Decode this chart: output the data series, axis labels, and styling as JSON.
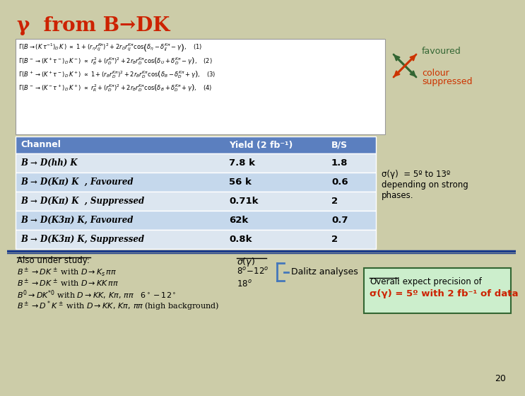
{
  "bg_color": "#cccca8",
  "title": "γ  from B→DK",
  "title_color": "#cc2200",
  "title_fontsize": 20,
  "favoured_color": "#336633",
  "suppressed_color": "#cc3300",
  "table_header_color": "#5b7fbf",
  "table_header_text_color": "#ffffff",
  "table_cols": [
    "Channel",
    "Yield (2 fb⁻¹)",
    "B/S"
  ],
  "table_rows": [
    [
      "B → D(hh) K",
      "7.8 k",
      "1.8"
    ],
    [
      "B → D(Kπ) K  , Favoured",
      "56 k",
      "0.6"
    ],
    [
      "B → D(Kπ) K  , Suppressed",
      "0.71k",
      "2"
    ],
    [
      "B → D(K3π) K, Favoured",
      "62k",
      "0.7"
    ],
    [
      "B → D(K3π) K, Suppressed",
      "0.8k",
      "2"
    ]
  ],
  "sigma_note_line1": "σ(γ)  = 5º to 13º",
  "sigma_note_line2": "depending on strong",
  "sigma_note_line3": "phases.",
  "also_title": "Also under study:",
  "dalitz_text": "Dalitz analyses",
  "overall_box_color": "#cceecc",
  "overall_box_border": "#336633",
  "overall_text1_plain": "Overall",
  "overall_text1_rest": ": expect precision of",
  "overall_text2": "σ(γ) = 5º with 2 fb⁻¹ of data",
  "overall_text2_color": "#cc2200",
  "page_number": "20",
  "sep_line_color": "#1a3a8a"
}
